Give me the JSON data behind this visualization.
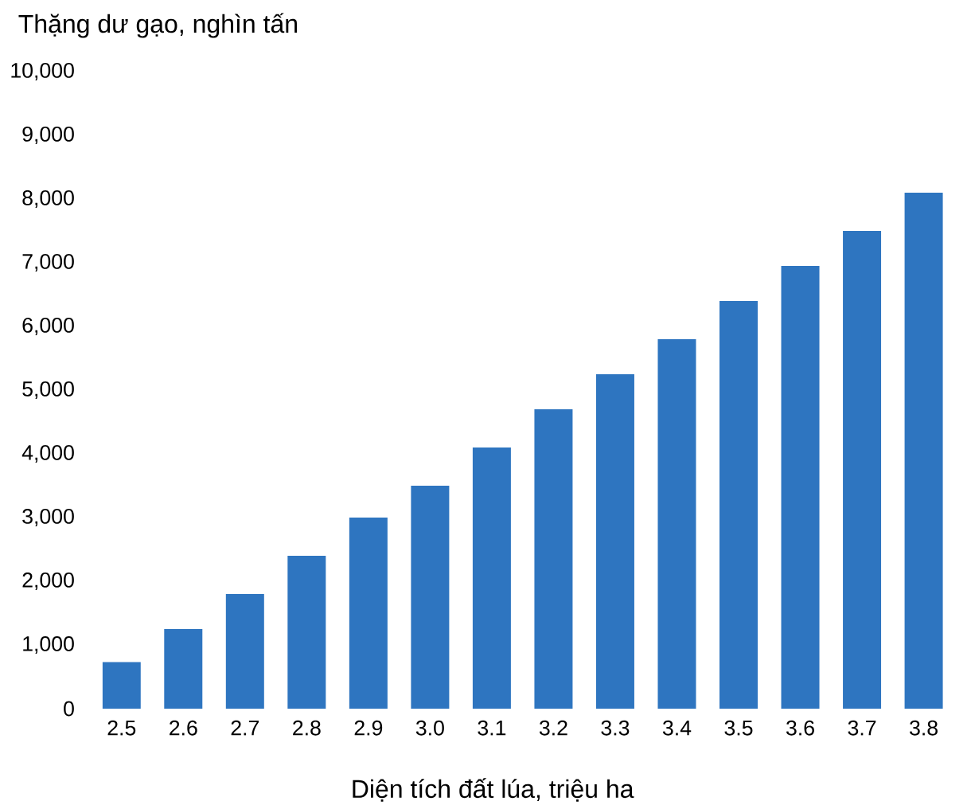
{
  "chart_data": {
    "type": "bar",
    "xlabel": "Diện tích đất lúa, triệu ha",
    "ylabel": "Thặng dư gạo, nghìn tấn",
    "categories": [
      "2.5",
      "2.6",
      "2.7",
      "2.8",
      "2.9",
      "3.0",
      "3.1",
      "3.2",
      "3.3",
      "3.4",
      "3.5",
      "3.6",
      "3.7",
      "3.8"
    ],
    "values": [
      730,
      1250,
      1800,
      2400,
      3000,
      3500,
      4100,
      4700,
      5250,
      5800,
      6400,
      6950,
      7500,
      8100
    ],
    "color": "#2e75c0",
    "ylim": [
      0,
      10000
    ],
    "yticks": [
      {
        "value": 0,
        "label": "0"
      },
      {
        "value": 1000,
        "label": "1,000"
      },
      {
        "value": 2000,
        "label": "2,000"
      },
      {
        "value": 3000,
        "label": "3,000"
      },
      {
        "value": 4000,
        "label": "4,000"
      },
      {
        "value": 5000,
        "label": "5,000"
      },
      {
        "value": 6000,
        "label": "6,000"
      },
      {
        "value": 7000,
        "label": "7,000"
      },
      {
        "value": 8000,
        "label": "8,000"
      },
      {
        "value": 9000,
        "label": "9,000"
      },
      {
        "value": 10000,
        "label": "10,000"
      }
    ],
    "grid": false
  }
}
